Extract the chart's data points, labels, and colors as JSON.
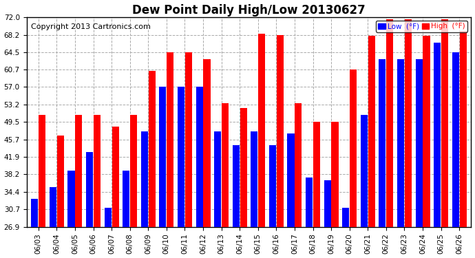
{
  "title": "Dew Point Daily High/Low 20130627",
  "copyright": "Copyright 2013 Cartronics.com",
  "dates": [
    "06/03",
    "06/04",
    "06/05",
    "06/06",
    "06/07",
    "06/08",
    "06/09",
    "06/10",
    "06/11",
    "06/12",
    "06/13",
    "06/14",
    "06/15",
    "06/16",
    "06/17",
    "06/18",
    "06/19",
    "06/20",
    "06/21",
    "06/22",
    "06/23",
    "06/24",
    "06/25",
    "06/26"
  ],
  "low_values": [
    33.0,
    35.5,
    39.0,
    43.0,
    31.0,
    39.0,
    47.5,
    57.0,
    57.0,
    57.0,
    47.5,
    44.5,
    47.5,
    44.5,
    47.0,
    37.5,
    37.0,
    31.0,
    51.0,
    63.0,
    63.0,
    63.0,
    66.5,
    64.5
  ],
  "high_values": [
    51.0,
    46.5,
    51.0,
    51.0,
    48.5,
    51.0,
    60.5,
    64.5,
    64.5,
    63.0,
    53.5,
    52.5,
    68.5,
    68.2,
    53.5,
    49.5,
    49.5,
    60.7,
    68.0,
    71.5,
    71.5,
    68.0,
    71.5,
    69.0
  ],
  "low_color": "#0000ff",
  "high_color": "#ff0000",
  "bg_color": "#ffffff",
  "plot_bg_color": "#ffffff",
  "grid_color": "#aaaaaa",
  "yticks": [
    26.9,
    30.7,
    34.4,
    38.2,
    41.9,
    45.7,
    49.5,
    53.2,
    57.0,
    60.7,
    64.5,
    68.2,
    72.0
  ],
  "ymin": 26.9,
  "ymax": 72.0,
  "title_fontsize": 12,
  "copyright_fontsize": 8,
  "legend_low_label": "Low  (°F)",
  "legend_high_label": "High  (°F)"
}
